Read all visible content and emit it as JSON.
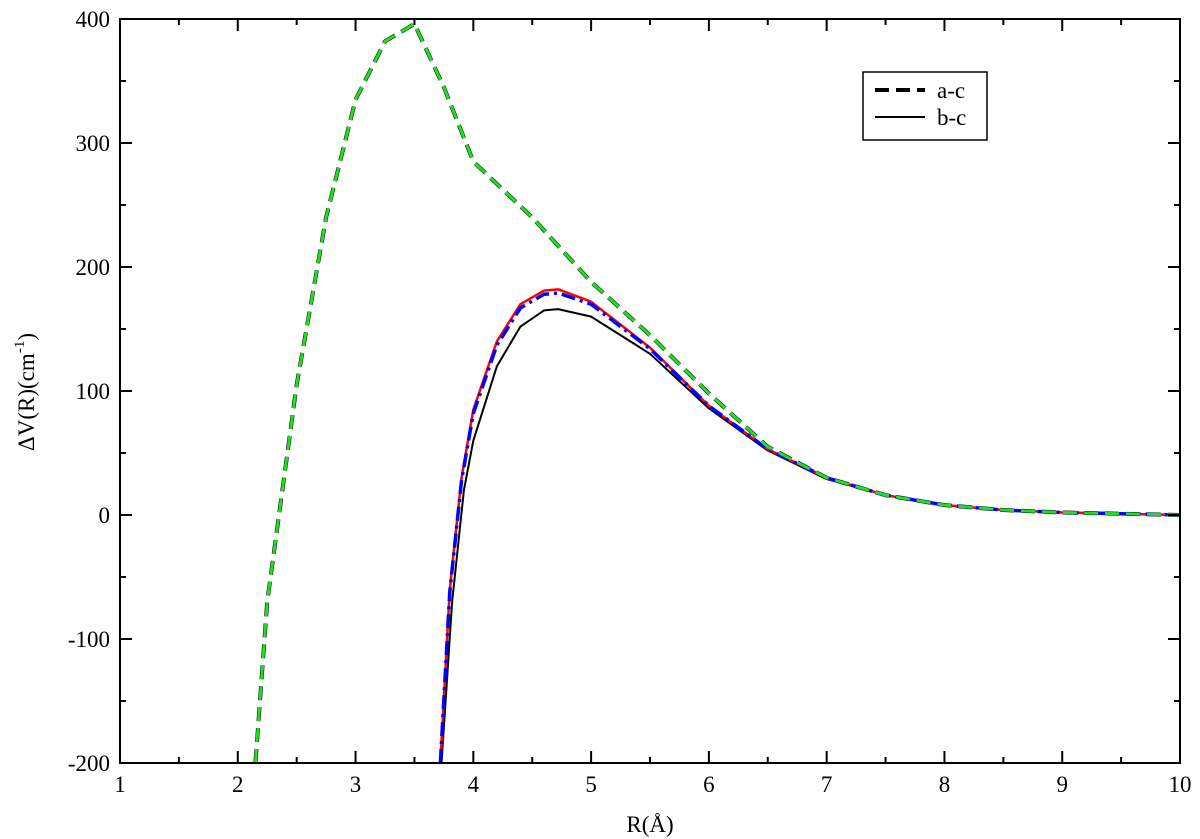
{
  "chart_data": {
    "type": "line",
    "x_label": "R(Å)",
    "y_label": {
      "text": "ΔV(R)(cm",
      "superscript": "-1",
      "suffix": ")"
    },
    "xlim": [
      1,
      10
    ],
    "ylim": [
      -200,
      400
    ],
    "xticks": [
      1,
      2,
      3,
      4,
      5,
      6,
      7,
      8,
      9,
      10
    ],
    "yticks": [
      -200,
      -100,
      0,
      100,
      200,
      300,
      400
    ],
    "xminorticks": [
      1.5,
      2.5,
      3.5,
      4.5,
      5.5,
      6.5,
      7.5,
      8.5,
      9.5
    ],
    "yminorticks": [
      -150,
      -50,
      50,
      150,
      250,
      350
    ],
    "legend": "top-right",
    "series": [
      {
        "name": "a-c",
        "color": "#000000",
        "dash": "dashed",
        "width": 4,
        "x": [
          2.15,
          2.25,
          2.5,
          2.75,
          3,
          3.25,
          3.5,
          3.75,
          4,
          4.5,
          5,
          5.5,
          6,
          6.5,
          7,
          7.5,
          8,
          8.5,
          9,
          9.5,
          10
        ],
        "values": [
          -200,
          -70,
          105,
          240,
          335,
          382,
          396,
          345,
          285,
          240,
          188,
          145,
          98,
          55,
          30,
          16,
          8,
          4,
          2,
          1,
          0
        ]
      },
      {
        "name": "b-c",
        "color": "#000000",
        "dash": "solid",
        "width": 2,
        "x": [
          3.73,
          3.82,
          3.92,
          4,
          4.2,
          4.4,
          4.6,
          4.72,
          5,
          5.5,
          6,
          6.5,
          7,
          7.5,
          8,
          8.5,
          9,
          9.5,
          10
        ],
        "values": [
          -200,
          -70,
          20,
          60,
          120,
          152,
          165,
          166,
          160,
          130,
          86,
          52,
          29,
          16,
          8,
          4,
          2,
          1,
          0
        ]
      },
      {
        "color": "#ff0000",
        "dash": "solid",
        "width": 2.5,
        "x": [
          3.72,
          3.8,
          3.9,
          4,
          4.2,
          4.4,
          4.6,
          4.72,
          5,
          5.5,
          6,
          6.5,
          7,
          7.5,
          8,
          8.5,
          9,
          9.5,
          10
        ],
        "values": [
          -200,
          -60,
          30,
          85,
          140,
          170,
          181,
          182,
          172,
          135,
          88,
          53,
          30,
          16,
          8,
          4,
          2,
          1,
          0
        ]
      },
      {
        "color": "#0000ff",
        "dash": "dashdot",
        "width": 3.5,
        "x": [
          3.72,
          3.8,
          3.9,
          4,
          4.2,
          4.4,
          4.6,
          4.72,
          5,
          5.5,
          6,
          6.5,
          7,
          7.5,
          8,
          8.5,
          9,
          9.5,
          10
        ],
        "values": [
          -200,
          -62,
          28,
          82,
          137,
          167,
          178,
          179,
          170,
          134,
          88,
          53,
          30,
          16,
          8,
          4,
          2,
          1,
          0
        ]
      },
      {
        "color": "#22dd22",
        "dash": "dashed",
        "width": 3,
        "x": [
          2.15,
          2.25,
          2.5,
          2.75,
          3,
          3.25,
          3.5,
          3.75,
          4,
          4.5,
          5,
          5.5,
          6,
          6.5,
          7,
          7.5,
          8,
          8.5,
          9,
          9.5,
          10
        ],
        "values": [
          -200,
          -70,
          105,
          240,
          335,
          382,
          396,
          345,
          285,
          240,
          188,
          145,
          98,
          55,
          30,
          16,
          8,
          4,
          2,
          1,
          0
        ]
      }
    ]
  }
}
